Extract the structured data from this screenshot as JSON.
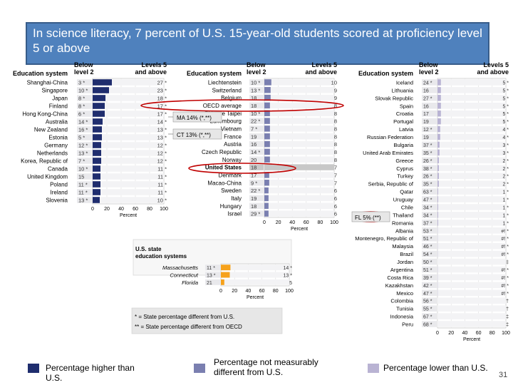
{
  "title": "In science literacy, 7 percent of U.S. 15-year-old students scored at proficiency level 5 or above",
  "headers": {
    "system": "Education system",
    "below": "Below level 2",
    "below_l1": "Below",
    "below_l2": "level 2",
    "levels": "Levels 5 and above",
    "levels_l1": "Levels 5",
    "levels_l2": "and above"
  },
  "axis_label": "Percent",
  "axis_ticks": [
    "0",
    "20",
    "40",
    "60",
    "80",
    "100"
  ],
  "colors": {
    "higher": "#1f2d6e",
    "not_different": "#7a7fb0",
    "lower": "#b9b3d3",
    "us_row": "#c8c8c8",
    "title_bg": "#4f81bd",
    "callout_red": "#c00000",
    "state_orange": "#f6a21c"
  },
  "chart_data": [
    {
      "type": "bar",
      "panel": 1,
      "categories": [
        "Shanghai-China",
        "Singapore",
        "Japan",
        "Finland",
        "Hong Kong-China",
        "Australia",
        "New Zealand",
        "Estonia",
        "Germany",
        "Netherlands",
        "Korea, Republic of",
        "Canada",
        "United Kingdom",
        "Poland",
        "Ireland",
        "Slovenia"
      ],
      "below_level2": [
        "3 *",
        "10 *",
        "8 *",
        "8 *",
        "6 *",
        "14 *",
        "16 *",
        "5 *",
        "12 *",
        "13 *",
        "7 *",
        "10 *",
        "15",
        "11 *",
        "11 *",
        "13 *"
      ],
      "levels5_above": [
        "27 *",
        "23 *",
        "18 *",
        "17 *",
        "17 *",
        "14 *",
        "13 *",
        "13 *",
        "12 *",
        "12 *",
        "12 *",
        "11 *",
        "11 *",
        "11 *",
        "11 *",
        "10 *"
      ],
      "values": [
        27,
        23,
        18,
        17,
        17,
        14,
        13,
        13,
        12,
        12,
        12,
        11,
        11,
        11,
        11,
        10
      ],
      "group": [
        "h",
        "h",
        "h",
        "h",
        "h",
        "h",
        "h",
        "h",
        "h",
        "h",
        "h",
        "h",
        "h",
        "h",
        "h",
        "h"
      ],
      "xlim": [
        0,
        100
      ]
    },
    {
      "type": "bar",
      "panel": 2,
      "categories": [
        "Liechtenstein",
        "Switzerland",
        "Belgium",
        "OECD average",
        "Chinese Taipei",
        "Luxembourg",
        "Vietnam",
        "France",
        "Austria",
        "Czech Republic",
        "Norway",
        "United States",
        "Denmark",
        "Macao-China",
        "Sweden",
        "Italy",
        "Hungary",
        "Israel"
      ],
      "below_level2": [
        "10 *",
        "13 *",
        "18",
        "18",
        "10 *",
        "22 *",
        "7 *",
        "19",
        "16",
        "14 *",
        "20",
        "18",
        "17",
        "9 *",
        "22 *",
        "19",
        "18",
        "29 *"
      ],
      "levels5_above": [
        "10",
        "9",
        "9",
        "8",
        "8",
        "8",
        "8",
        "8",
        "8",
        "8",
        "8",
        "7",
        "7",
        "7",
        "6",
        "6",
        "6",
        "6"
      ],
      "values": [
        10,
        9,
        9,
        8,
        8,
        8,
        8,
        8,
        8,
        8,
        8,
        7,
        7,
        7,
        6,
        6,
        6,
        6
      ],
      "group": [
        "n",
        "n",
        "n",
        "n",
        "n",
        "n",
        "n",
        "n",
        "n",
        "n",
        "n",
        "u",
        "n",
        "n",
        "n",
        "n",
        "n",
        "n"
      ],
      "xlim": [
        0,
        100
      ]
    },
    {
      "type": "bar",
      "panel": 3,
      "categories": [
        "Iceland",
        "Lithuania",
        "Slovak Republic",
        "Spain",
        "Croatia",
        "Portugal",
        "Latvia",
        "Russian Federation",
        "Bulgaria",
        "United Arab Emirates",
        "Greece",
        "Cyprus",
        "Turkey",
        "Serbia, Republic of",
        "Qatar",
        "Uruguay",
        "Chile",
        "Thailand",
        "Romania",
        "Albania",
        "Montenegro, Republic of",
        "Malaysia",
        "Brazil",
        "Jordan",
        "Argentina",
        "Costa Rica",
        "Kazakhstan",
        "Mexico",
        "Colombia",
        "Tunisia",
        "Indonesia",
        "Peru"
      ],
      "below_level2": [
        "24 *",
        "16",
        "27 *",
        "16",
        "17",
        "19",
        "12 *",
        "19",
        "37 *",
        "35 *",
        "26 *",
        "38 *",
        "26 *",
        "35 *",
        "63 *",
        "47 *",
        "34 *",
        "34 *",
        "37 *",
        "53 *",
        "51 *",
        "46 *",
        "54 *",
        "50 *",
        "51 *",
        "39 *",
        "42 *",
        "47 *",
        "56 *",
        "55 *",
        "67 *",
        "68 *"
      ],
      "levels5_above": [
        "5 *",
        "5 *",
        "5 *",
        "5 *",
        "5 *",
        "5 *",
        "4 *",
        "4 *",
        "3 *",
        "3 *",
        "2 *",
        "2 *",
        "2 *",
        "2 *",
        "1 *",
        "1 *",
        "1 *",
        "1 *",
        "1 *",
        "#! *",
        "#! *",
        "#! *",
        "#! *",
        "‡",
        "#! *",
        "#! *",
        "#! *",
        "#! *",
        "†",
        "†",
        "‡",
        "‡"
      ],
      "values": [
        5,
        5,
        5,
        5,
        5,
        5,
        4,
        4,
        3,
        3,
        2,
        2,
        2,
        2,
        1,
        1,
        1,
        1,
        1,
        0.3,
        0.3,
        0.3,
        0.3,
        0,
        0.3,
        0.3,
        0.3,
        0.3,
        0,
        0,
        0,
        0
      ],
      "group": [
        "l",
        "l",
        "l",
        "l",
        "l",
        "l",
        "l",
        "l",
        "l",
        "l",
        "l",
        "l",
        "l",
        "l",
        "l",
        "l",
        "l",
        "l",
        "l",
        "l",
        "l",
        "l",
        "l",
        "l",
        "l",
        "l",
        "l",
        "l",
        "l",
        "l",
        "l",
        "l"
      ],
      "xlim": [
        0,
        100
      ]
    },
    {
      "type": "bar",
      "panel": 4,
      "title": "U.S. state education systems",
      "title_l1": "U.S. state",
      "title_l2": "education systems",
      "categories": [
        "Massachusetts",
        "Connecticut",
        "Florida"
      ],
      "below_level2": [
        "11 *",
        "13 *",
        "21"
      ],
      "levels5_above": [
        "14 *",
        "13 *",
        "5"
      ],
      "values": [
        14,
        13,
        5
      ],
      "group": [
        "h",
        "h",
        "n"
      ],
      "xlim": [
        0,
        100
      ]
    }
  ],
  "callouts": {
    "ma": "MA 14% (*,**)",
    "ct": "CT 13% (*,**)",
    "fl": "FL 5% (**)"
  },
  "notes": {
    "n1": "* = State percentage different from U.S.",
    "n2": "** = State percentage different from OECD"
  },
  "legend": {
    "higher": "Percentage higher than U.S.",
    "not_different": "Percentage not measurably different from U.S.",
    "lower": "Percentage lower than U.S."
  },
  "page_number": "31"
}
